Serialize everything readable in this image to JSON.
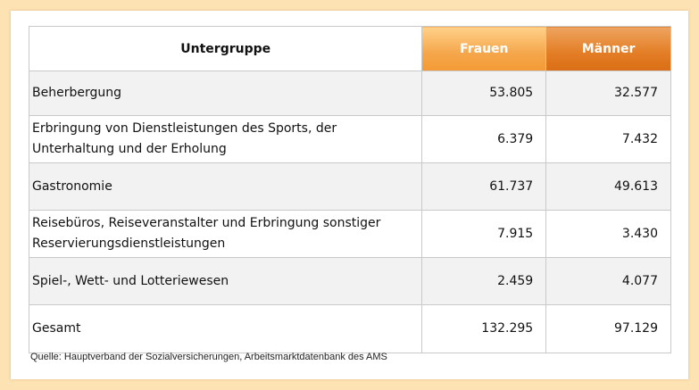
{
  "table": {
    "headers": [
      "Untergruppe",
      "Frauen",
      "Männer"
    ],
    "rows": [
      {
        "label": "Beherbergung",
        "frauen": "53.805",
        "maenner": "32.577"
      },
      {
        "label": "Erbringung von Dienstleistungen des Sports, der Unterhaltung und der Erholung",
        "frauen": "6.379",
        "maenner": "7.432"
      },
      {
        "label": "Gastronomie",
        "frauen": "61.737",
        "maenner": "49.613"
      },
      {
        "label": "Reisebüros, Reiseveranstalter und Erbringung sonstiger Reservierungsdienstleistungen",
        "frauen": "7.915",
        "maenner": "3.430"
      },
      {
        "label": "Spiel-, Wett- und Lotteriewesen",
        "frauen": "2.459",
        "maenner": "4.077"
      },
      {
        "label": "Gesamt",
        "frauen": "132.295",
        "maenner": "97.129"
      }
    ]
  },
  "source": "Quelle: Hauptverband der Sozialversicherungen, Arbeitsmarktdatenbank des AMS",
  "colors": {
    "frame": "#fde2b3",
    "frauen_header": "#f5a64a",
    "maenner_header": "#e37d25",
    "row_gray": "#f2f2f2"
  }
}
